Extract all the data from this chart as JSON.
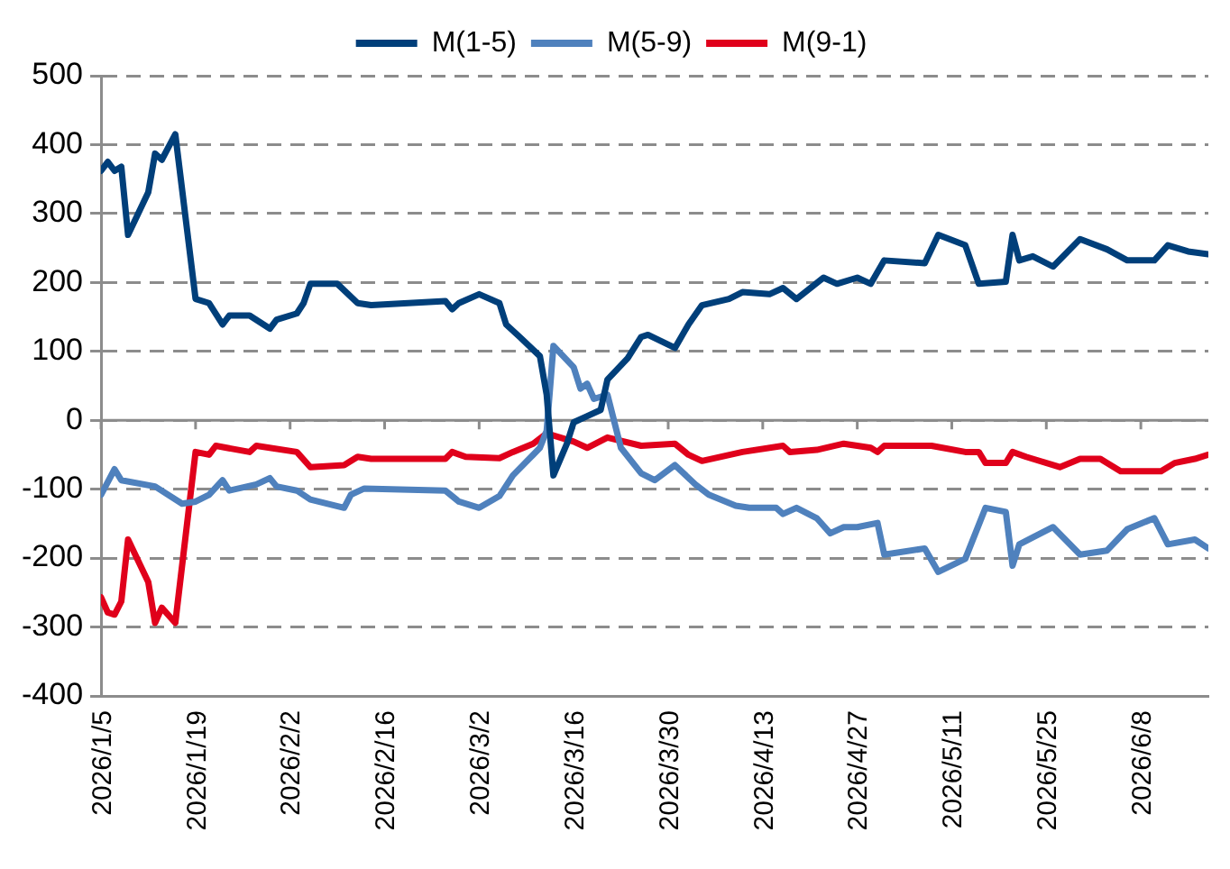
{
  "chart_data": {
    "type": "line",
    "legend": "top",
    "grid": "y",
    "line_style": "solid",
    "marker": "none",
    "xlim": [
      "2026-01-05",
      "2026-06-18"
    ],
    "xticks": [
      {
        "value": "2026-01-05",
        "label": "2026/1/5"
      },
      {
        "value": "2026-01-19",
        "label": "2026/1/19"
      },
      {
        "value": "2026-02-02",
        "label": "2026/2/2"
      },
      {
        "value": "2026-02-16",
        "label": "2026/2/16"
      },
      {
        "value": "2026-03-02",
        "label": "2026/3/2"
      },
      {
        "value": "2026-03-16",
        "label": "2026/3/16"
      },
      {
        "value": "2026-03-30",
        "label": "2026/3/30"
      },
      {
        "value": "2026-04-13",
        "label": "2026/4/13"
      },
      {
        "value": "2026-04-27",
        "label": "2026/4/27"
      },
      {
        "value": "2026-05-11",
        "label": "2026/5/11"
      },
      {
        "value": "2026-05-25",
        "label": "2026/5/25"
      },
      {
        "value": "2026-06-08",
        "label": "2026/6/8"
      }
    ],
    "ylim": [
      -400,
      500
    ],
    "yticks": [
      -400,
      -300,
      -200,
      -100,
      0,
      100,
      200,
      300,
      400,
      500
    ],
    "series": [
      {
        "name": "M(1-5)",
        "color": "#003f7a",
        "x": [
          "2026-01-05",
          "2026-01-06",
          "2026-01-07",
          "2026-01-08",
          "2026-01-09",
          "2026-01-12",
          "2026-01-13",
          "2026-01-14",
          "2026-01-16",
          "2026-01-19",
          "2026-01-21",
          "2026-01-23",
          "2026-01-24",
          "2026-01-27",
          "2026-01-30",
          "2026-01-31",
          "2026-02-03",
          "2026-02-04",
          "2026-02-05",
          "2026-02-09",
          "2026-02-12",
          "2026-02-14",
          "2026-02-25",
          "2026-02-26",
          "2026-02-27",
          "2026-03-02",
          "2026-03-05",
          "2026-03-06",
          "2026-03-08",
          "2026-03-11",
          "2026-03-12",
          "2026-03-13",
          "2026-03-15",
          "2026-03-16",
          "2026-03-18",
          "2026-03-20",
          "2026-03-21",
          "2026-03-24",
          "2026-03-26",
          "2026-03-27",
          "2026-03-31",
          "2026-04-02",
          "2026-04-04",
          "2026-04-08",
          "2026-04-10",
          "2026-04-14",
          "2026-04-16",
          "2026-04-18",
          "2026-04-22",
          "2026-04-24",
          "2026-04-27",
          "2026-04-29",
          "2026-05-01",
          "2026-05-07",
          "2026-05-09",
          "2026-05-13",
          "2026-05-15",
          "2026-05-19",
          "2026-05-20",
          "2026-05-21",
          "2026-05-23",
          "2026-05-26",
          "2026-05-30",
          "2026-06-03",
          "2026-06-06",
          "2026-06-10",
          "2026-06-12",
          "2026-06-15",
          "2026-06-18"
        ],
        "values": [
          362,
          375,
          362,
          368,
          269,
          331,
          387,
          378,
          415,
          176,
          170,
          139,
          152,
          152,
          133,
          146,
          155,
          170,
          198,
          198,
          170,
          167,
          173,
          161,
          170,
          183,
          170,
          139,
          121,
          93,
          37,
          -80,
          -34,
          -3,
          6,
          15,
          59,
          90,
          121,
          124,
          105,
          139,
          167,
          176,
          186,
          183,
          192,
          176,
          207,
          198,
          207,
          198,
          232,
          228,
          269,
          254,
          198,
          201,
          269,
          232,
          238,
          223,
          263,
          248,
          232,
          232,
          254,
          245,
          241
        ]
      },
      {
        "name": "M(5-9)",
        "color": "#4f81bd",
        "x": [
          "2026-01-05",
          "2026-01-07",
          "2026-01-08",
          "2026-01-13",
          "2026-01-17",
          "2026-01-19",
          "2026-01-21",
          "2026-01-23",
          "2026-01-24",
          "2026-01-28",
          "2026-01-30",
          "2026-01-31",
          "2026-02-03",
          "2026-02-05",
          "2026-02-10",
          "2026-02-11",
          "2026-02-13",
          "2026-02-25",
          "2026-02-27",
          "2026-03-02",
          "2026-03-05",
          "2026-03-07",
          "2026-03-10",
          "2026-03-11",
          "2026-03-12",
          "2026-03-13",
          "2026-03-16",
          "2026-03-17",
          "2026-03-18",
          "2026-03-19",
          "2026-03-21",
          "2026-03-23",
          "2026-03-26",
          "2026-03-28",
          "2026-03-31",
          "2026-04-03",
          "2026-04-05",
          "2026-04-09",
          "2026-04-11",
          "2026-04-15",
          "2026-04-16",
          "2026-04-18",
          "2026-04-21",
          "2026-04-23",
          "2026-04-25",
          "2026-04-27",
          "2026-04-30",
          "2026-05-01",
          "2026-05-07",
          "2026-05-09",
          "2026-05-13",
          "2026-05-16",
          "2026-05-19",
          "2026-05-20",
          "2026-05-21",
          "2026-05-23",
          "2026-05-26",
          "2026-05-30",
          "2026-06-03",
          "2026-06-06",
          "2026-06-10",
          "2026-06-12",
          "2026-06-16",
          "2026-06-18"
        ],
        "values": [
          -108,
          -71,
          -87,
          -96,
          -121,
          -118,
          -108,
          -87,
          -102,
          -93,
          -84,
          -96,
          -102,
          -115,
          -127,
          -108,
          -99,
          -102,
          -118,
          -127,
          -110,
          -80,
          -50,
          -40,
          -15,
          108,
          77,
          46,
          53,
          31,
          37,
          -40,
          -77,
          -87,
          -65,
          -93,
          -108,
          -124,
          -127,
          -127,
          -136,
          -127,
          -142,
          -164,
          -155,
          -155,
          -149,
          -195,
          -186,
          -220,
          -201,
          -127,
          -133,
          -211,
          -180,
          -170,
          -155,
          -195,
          -189,
          -158,
          -142,
          -180,
          -173,
          -186
        ]
      },
      {
        "name": "M(9-1)",
        "color": "#e0001b",
        "x": [
          "2026-01-05",
          "2026-01-06",
          "2026-01-07",
          "2026-01-08",
          "2026-01-09",
          "2026-01-12",
          "2026-01-13",
          "2026-01-14",
          "2026-01-16",
          "2026-01-19",
          "2026-01-21",
          "2026-01-22",
          "2026-01-27",
          "2026-01-28",
          "2026-02-03",
          "2026-02-05",
          "2026-02-10",
          "2026-02-12",
          "2026-02-14",
          "2026-02-25",
          "2026-02-26",
          "2026-02-28",
          "2026-03-05",
          "2026-03-07",
          "2026-03-10",
          "2026-03-12",
          "2026-03-14",
          "2026-03-16",
          "2026-03-18",
          "2026-03-21",
          "2026-03-26",
          "2026-03-31",
          "2026-04-02",
          "2026-04-04",
          "2026-04-10",
          "2026-04-16",
          "2026-04-17",
          "2026-04-21",
          "2026-04-25",
          "2026-04-29",
          "2026-04-30",
          "2026-05-01",
          "2026-05-08",
          "2026-05-13",
          "2026-05-15",
          "2026-05-16",
          "2026-05-19",
          "2026-05-20",
          "2026-05-22",
          "2026-05-27",
          "2026-05-30",
          "2026-06-02",
          "2026-06-05",
          "2026-06-11",
          "2026-06-13",
          "2026-06-16",
          "2026-06-18"
        ],
        "values": [
          -257,
          -279,
          -282,
          -263,
          -173,
          -235,
          -294,
          -272,
          -294,
          -46,
          -50,
          -37,
          -46,
          -37,
          -46,
          -68,
          -65,
          -53,
          -56,
          -56,
          -46,
          -53,
          -55,
          -46,
          -34,
          -19,
          -25,
          -31,
          -40,
          -25,
          -37,
          -34,
          -50,
          -59,
          -46,
          -37,
          -46,
          -43,
          -34,
          -40,
          -46,
          -37,
          -37,
          -46,
          -46,
          -62,
          -62,
          -46,
          -53,
          -68,
          -56,
          -56,
          -74,
          -74,
          -62,
          -56,
          -50
        ]
      }
    ]
  }
}
